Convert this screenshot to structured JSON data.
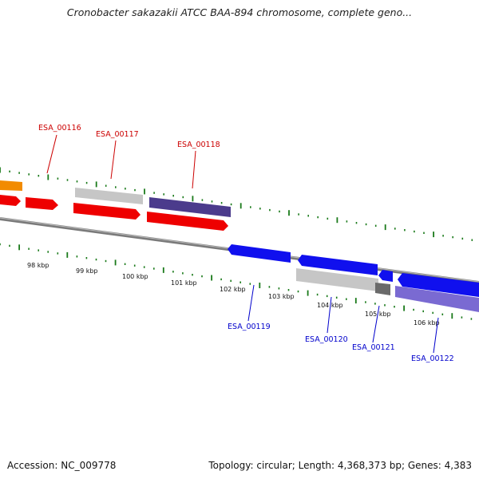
{
  "title": "Cronobacter sakazakii ATCC BAA-894 chromosome, complete geno...",
  "footer": {
    "accession": "Accession: NC_009778",
    "topology": "Topology: circular; Length: 4,368,373 bp; Genes: 4,383"
  },
  "colors": {
    "forward_label": "#cc0000",
    "reverse_label": "#0000cc",
    "tick": "#1a7a1a",
    "backbone": "#7a7a7a"
  },
  "scale_labels": [
    "98 kbp",
    "99 kbp",
    "100 kbp",
    "101 kbp",
    "102 kbp",
    "103 kbp",
    "104 kbp",
    "105 kbp",
    "106 kbp"
  ],
  "gene_labels_top": [
    "ESA_00116",
    "ESA_00117",
    "ESA_00118"
  ],
  "gene_labels_bottom": [
    "ESA_00119",
    "ESA_00120",
    "ESA_00121",
    "ESA_00122"
  ]
}
